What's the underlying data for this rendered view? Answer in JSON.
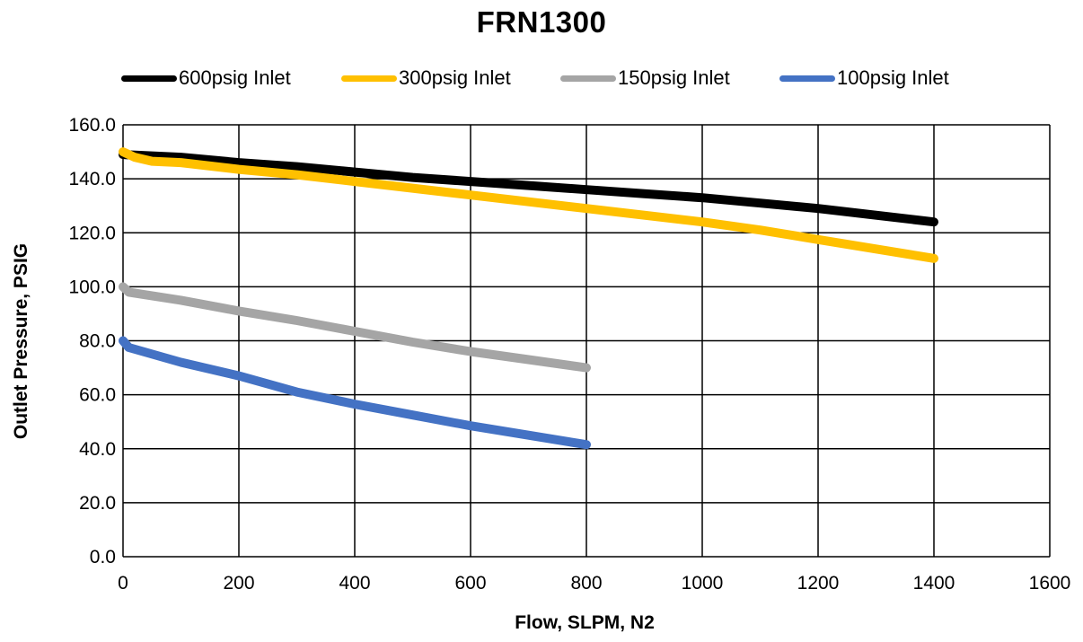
{
  "chart_data": {
    "type": "line",
    "title": "FRN1300",
    "xlabel": "Flow, SLPM, N2",
    "ylabel": "Outlet Pressure, PSIG",
    "xlim": [
      0,
      1600
    ],
    "ylim": [
      0,
      160
    ],
    "x_ticks": [
      "0",
      "200",
      "400",
      "600",
      "800",
      "1000",
      "1200",
      "1400",
      "1600"
    ],
    "y_ticks": [
      "0.0",
      "20.0",
      "40.0",
      "60.0",
      "80.0",
      "100.0",
      "120.0",
      "140.0",
      "160.0"
    ],
    "grid": true,
    "legend_position": "top",
    "series": [
      {
        "name": "600psig Inlet",
        "color": "#000000",
        "points": [
          [
            0,
            149
          ],
          [
            100,
            148
          ],
          [
            200,
            146
          ],
          [
            300,
            144.5
          ],
          [
            400,
            142.5
          ],
          [
            500,
            140.5
          ],
          [
            600,
            139
          ],
          [
            700,
            137.5
          ],
          [
            800,
            136
          ],
          [
            900,
            134.5
          ],
          [
            1000,
            133
          ],
          [
            1100,
            131
          ],
          [
            1200,
            129
          ],
          [
            1300,
            126.5
          ],
          [
            1400,
            124
          ]
        ]
      },
      {
        "name": "300psig Inlet",
        "color": "#FFC000",
        "points": [
          [
            0,
            150
          ],
          [
            20,
            148
          ],
          [
            50,
            146.5
          ],
          [
            100,
            146
          ],
          [
            200,
            143.5
          ],
          [
            300,
            141.5
          ],
          [
            400,
            139
          ],
          [
            500,
            136.5
          ],
          [
            600,
            134
          ],
          [
            700,
            131.5
          ],
          [
            800,
            129
          ],
          [
            900,
            126.5
          ],
          [
            1000,
            124
          ],
          [
            1100,
            121
          ],
          [
            1200,
            117.5
          ],
          [
            1300,
            114
          ],
          [
            1400,
            110.5
          ]
        ]
      },
      {
        "name": "150psig Inlet",
        "color": "#A5A5A5",
        "points": [
          [
            0,
            100
          ],
          [
            10,
            98
          ],
          [
            100,
            95
          ],
          [
            200,
            91
          ],
          [
            300,
            87.5
          ],
          [
            400,
            83.5
          ],
          [
            500,
            79.5
          ],
          [
            600,
            76
          ],
          [
            700,
            73
          ],
          [
            800,
            70
          ]
        ]
      },
      {
        "name": "100psig Inlet",
        "color": "#4472C4",
        "points": [
          [
            0,
            80
          ],
          [
            10,
            77.5
          ],
          [
            100,
            72
          ],
          [
            200,
            67
          ],
          [
            300,
            61
          ],
          [
            400,
            56.5
          ],
          [
            500,
            52.5
          ],
          [
            600,
            48.5
          ],
          [
            700,
            45
          ],
          [
            800,
            41.5
          ]
        ]
      }
    ]
  }
}
